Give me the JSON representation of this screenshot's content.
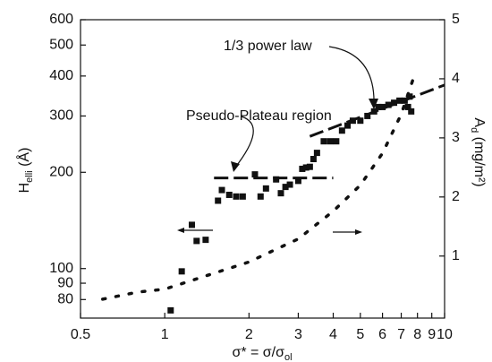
{
  "chart_data": {
    "type": "scatter",
    "log_x": true,
    "log_y": true,
    "xlim": [
      0.5,
      10
    ],
    "xticks": [
      0.5,
      1,
      2,
      3,
      4,
      5,
      6,
      7,
      8,
      9,
      10
    ],
    "ylim": [
      70,
      600
    ],
    "yticks": [
      80,
      90,
      100,
      200,
      300,
      400,
      500,
      600
    ],
    "y2lim": [
      -0.05,
      5
    ],
    "y2ticks": [
      1,
      2,
      3,
      4,
      5
    ],
    "xlabel": {
      "main": "σ* = σ/σ",
      "sub": "ol"
    },
    "ylabel": {
      "main": "H",
      "sub": "elli",
      "unit": " (Å)"
    },
    "y2label": {
      "main": "A",
      "sub": "d",
      "unit": " (mg/m²)"
    },
    "annotations": [
      "1/3 power law",
      "Pseudo-Plateau region"
    ],
    "series": [
      {
        "marker": "square",
        "color": "#111",
        "x": [
          1.05,
          1.15,
          1.25,
          1.3,
          1.4,
          1.55,
          1.6,
          1.7,
          1.8,
          1.9,
          2.1,
          2.2,
          2.3,
          2.5,
          2.6,
          2.7,
          2.8,
          3.0,
          3.1,
          3.2,
          3.3,
          3.4,
          3.5,
          3.7,
          3.9,
          4.1,
          4.3,
          4.5,
          4.7,
          5.0,
          5.3,
          5.6,
          5.8,
          6.0,
          6.3,
          6.6,
          6.9,
          7.2,
          7.4,
          7.6,
          7.5
        ],
        "values": [
          74,
          98,
          137,
          122,
          123,
          163,
          176,
          170,
          168,
          168,
          197,
          168,
          178,
          190,
          172,
          180,
          183,
          188,
          205,
          207,
          208,
          220,
          230,
          250,
          250,
          250,
          270,
          280,
          290,
          290,
          300,
          310,
          320,
          320,
          325,
          330,
          335,
          335,
          320,
          310,
          345
        ]
      },
      {
        "marker": "dot",
        "axis": "y2",
        "color": "#111",
        "x": [
          0.6,
          0.8,
          1,
          2,
          3,
          4,
          5,
          6,
          7,
          7.7
        ],
        "values": [
          0.27,
          0.39,
          0.44,
          0.9,
          1.29,
          1.76,
          2.2,
          2.74,
          3.4,
          3.98
        ]
      },
      {
        "marker": "dash",
        "color": "#111",
        "x": [
          1.5,
          4
        ],
        "values": [
          192,
          192
        ]
      },
      {
        "marker": "dash",
        "color": "#111",
        "x": [
          3.3,
          10
        ],
        "values": [
          259,
          375
        ]
      }
    ]
  }
}
